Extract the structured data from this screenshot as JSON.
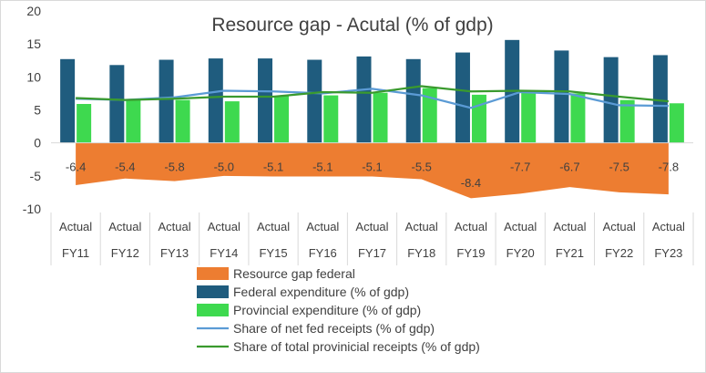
{
  "chart_data": {
    "type": "bar",
    "title": "Resource gap - Acutal (% of gdp)",
    "xlabel": "",
    "ylabel": "",
    "ylim": [
      -10,
      20
    ],
    "yticks": [
      20,
      15,
      10,
      5,
      0,
      -5,
      -10
    ],
    "grid": false,
    "legend_position": "bottom",
    "categories": [
      "FY11",
      "FY12",
      "FY13",
      "FY14",
      "FY15",
      "FY16",
      "FY17",
      "FY18",
      "FY19",
      "FY20",
      "FY21",
      "FY22",
      "FY23"
    ],
    "category_group_label": "Actual",
    "series": [
      {
        "name": "Resource gap federal",
        "kind": "area",
        "color": "#ED7D31",
        "values": [
          -6.4,
          -5.4,
          -5.8,
          -5.0,
          -5.1,
          -5.1,
          -5.1,
          -5.5,
          -8.4,
          -7.7,
          -6.7,
          -7.5,
          -7.8
        ],
        "data_labels": [
          "-6.4",
          "-5.4",
          "-5.8",
          "-5.0",
          "-5.1",
          "-5.1",
          "-5.1",
          "-5.5",
          "-8.4",
          "-7.7",
          "-6.7",
          "-7.5",
          "-7.8"
        ]
      },
      {
        "name": "Federal expenditure (% of gdp)",
        "kind": "bar",
        "color": "#1F5C7E",
        "values": [
          12.7,
          11.8,
          12.6,
          12.8,
          12.8,
          12.6,
          13.1,
          12.7,
          13.7,
          15.6,
          14.0,
          13.0,
          13.3
        ]
      },
      {
        "name": "Provincial expenditure (% of gdp)",
        "kind": "bar",
        "color": "#3ED94F",
        "values": [
          5.9,
          6.6,
          6.5,
          6.3,
          7.1,
          7.2,
          7.6,
          8.3,
          7.3,
          7.6,
          7.5,
          6.5,
          6.0
        ]
      },
      {
        "name": "Share of net fed receipts (% of gdp)",
        "kind": "line",
        "color": "#5B9BD5",
        "values": [
          6.7,
          6.5,
          6.9,
          7.9,
          7.8,
          7.5,
          8.2,
          7.2,
          5.3,
          7.7,
          7.4,
          5.7,
          5.6
        ]
      },
      {
        "name": "Share of total provinicial receipts (% of gdp)",
        "kind": "line",
        "color": "#3A9A2E",
        "values": [
          6.8,
          6.5,
          6.7,
          7.0,
          7.0,
          7.7,
          7.6,
          8.6,
          7.8,
          7.9,
          7.8,
          7.0,
          6.3
        ]
      }
    ]
  }
}
